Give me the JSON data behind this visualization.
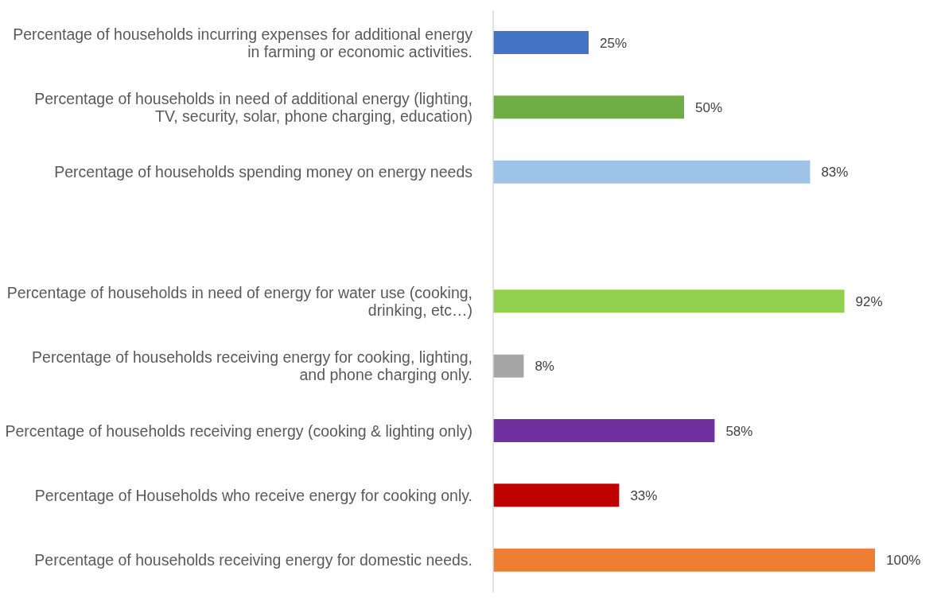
{
  "chart_data": {
    "type": "bar",
    "orientation": "horizontal",
    "categories": [
      "Percentage of households incurring expenses for additional energy in farming or economic activities.",
      "Percentage of households in need of additional energy  (lighting, TV, security, solar, phone charging, education)",
      "Percentage of households spending money on energy needs",
      null,
      "Percentage of households in need of energy for water use (cooking, drinking, etc…)",
      "Percentage of households receiving energy for cooking, lighting, and phone charging only.",
      "Percentage of households receiving energy (cooking & lighting only)",
      "Percentage of Households who receive energy for cooking only.",
      "Percentage of households receiving energy for domestic needs."
    ],
    "values": [
      25,
      50,
      83,
      null,
      92,
      8,
      58,
      33,
      100
    ],
    "colors": [
      "#4472c4",
      "#70ad47",
      "#9dc3e6",
      "#ffffff",
      "#92d050",
      "#a5a5a5",
      "#7030a0",
      "#c00000",
      "#ed7d31"
    ],
    "value_labels": [
      "25%",
      "50%",
      "83%",
      null,
      "92%",
      "8%",
      "58%",
      "33%",
      "100%"
    ]
  }
}
